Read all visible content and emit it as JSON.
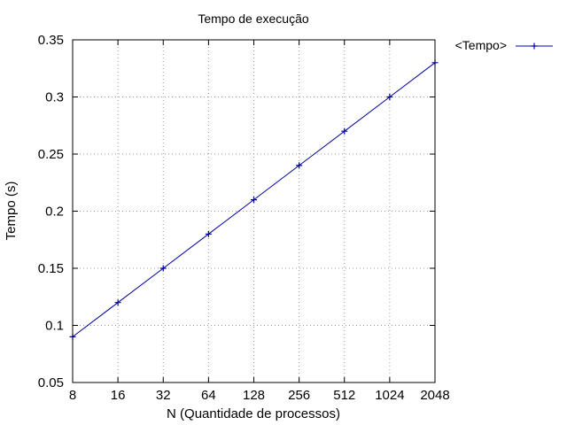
{
  "chart_data": {
    "type": "line",
    "title": "Tempo de execução",
    "xlabel": "N (Quantidade de processos)",
    "ylabel": "Tempo (s)",
    "x_scale": "log2",
    "x": [
      8,
      16,
      32,
      64,
      128,
      256,
      512,
      1024,
      2048
    ],
    "x_tick_labels": [
      "8",
      "16",
      "32",
      "64",
      "128",
      "256",
      "512",
      "1024",
      "2048"
    ],
    "y_ticks": [
      0.05,
      0.1,
      0.15,
      0.2,
      0.25,
      0.3,
      0.35
    ],
    "y_tick_labels": [
      "0.05",
      "0.1",
      "0.15",
      "0.2",
      "0.25",
      "0.3",
      "0.35"
    ],
    "xlim": [
      8,
      2048
    ],
    "ylim": [
      0.05,
      0.35
    ],
    "grid": true,
    "legend_position": "outside-top-right",
    "series": [
      {
        "name": "<Tempo>",
        "color": "#0000a0",
        "marker": "plus",
        "values": [
          0.09,
          0.12,
          0.15,
          0.18,
          0.21,
          0.24,
          0.27,
          0.3,
          0.33
        ]
      }
    ]
  }
}
